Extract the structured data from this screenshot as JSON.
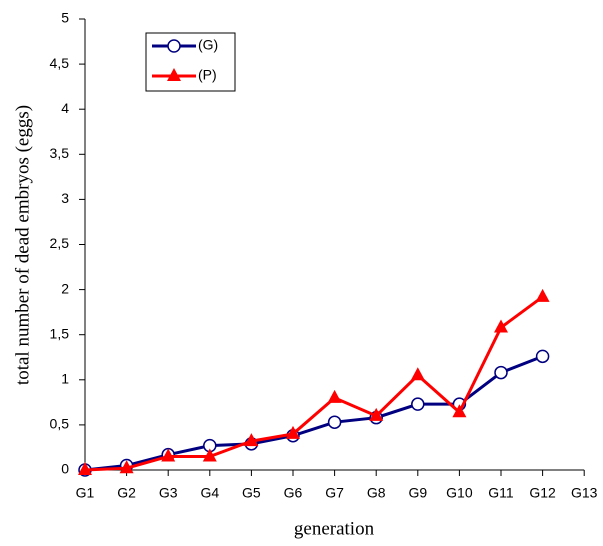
{
  "chart_data": {
    "type": "line",
    "x_label": "generation",
    "y_label": "total number of  dead embryos (eggs)",
    "categories": [
      "G1",
      "G2",
      "G3",
      "G4",
      "G5",
      "G6",
      "G7",
      "G8",
      "G9",
      "G10",
      "G11",
      "G12",
      "G13"
    ],
    "series": [
      {
        "name": "(G)",
        "color": "#000080",
        "marker": "circle",
        "values": [
          0,
          0.05,
          0.17,
          0.27,
          0.29,
          0.38,
          0.53,
          0.58,
          0.73,
          0.73,
          1.08,
          1.26,
          null
        ]
      },
      {
        "name": "(P)",
        "color": "#ff0000",
        "marker": "triangle",
        "values": [
          0,
          0.02,
          0.15,
          0.15,
          0.32,
          0.4,
          0.8,
          0.6,
          1.05,
          0.64,
          1.58,
          1.92,
          null
        ]
      }
    ],
    "ylim": [
      0,
      5
    ],
    "yticks": [
      0,
      {
        "value": 0.5,
        "label": "0,5"
      },
      1,
      {
        "value": 1.5,
        "label": "1,5"
      },
      2,
      {
        "value": 2.5,
        "label": "2,5"
      },
      3,
      {
        "value": 3.5,
        "label": "3,5"
      },
      4,
      {
        "value": 4.5,
        "label": "4,5"
      },
      5
    ],
    "legend": "top-left"
  }
}
